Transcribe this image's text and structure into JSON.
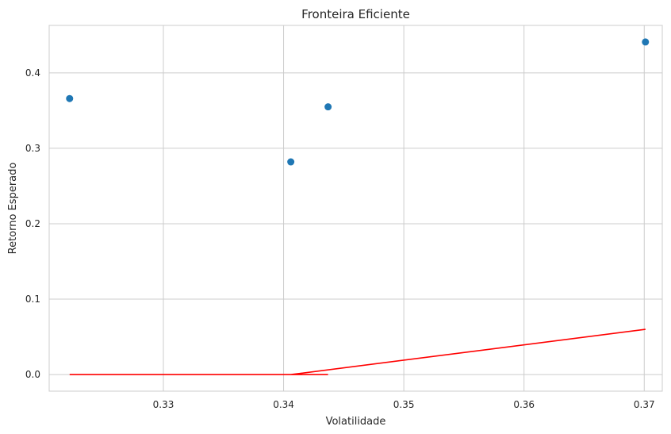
{
  "chart_data": {
    "type": "scatter",
    "title": "Fronteira Eficiente",
    "xlabel": "Volatilidade",
    "ylabel": "Retorno Esperado",
    "xlim": [
      0.3205,
      0.3715
    ],
    "ylim": [
      -0.022,
      0.463
    ],
    "grid": true,
    "x_ticks": [
      0.33,
      0.34,
      0.35,
      0.36,
      0.37
    ],
    "x_tick_labels": [
      "0.33",
      "0.34",
      "0.35",
      "0.36",
      "0.37"
    ],
    "y_ticks": [
      0.0,
      0.1,
      0.2,
      0.3,
      0.4
    ],
    "y_tick_labels": [
      "0.0",
      "0.1",
      "0.2",
      "0.3",
      "0.4"
    ],
    "series": [
      {
        "kind": "scatter",
        "color": "#1f77b4",
        "points": [
          {
            "x": 0.3222,
            "y": 0.366
          },
          {
            "x": 0.3406,
            "y": 0.282
          },
          {
            "x": 0.3437,
            "y": 0.355
          },
          {
            "x": 0.3701,
            "y": 0.441
          }
        ]
      },
      {
        "kind": "line",
        "color": "#ff0000",
        "points": [
          {
            "x": 0.3222,
            "y": 0.0
          },
          {
            "x": 0.3437,
            "y": 0.0
          },
          {
            "x": 0.3406,
            "y": 0.0
          },
          {
            "x": 0.3701,
            "y": 0.06
          }
        ]
      }
    ]
  }
}
